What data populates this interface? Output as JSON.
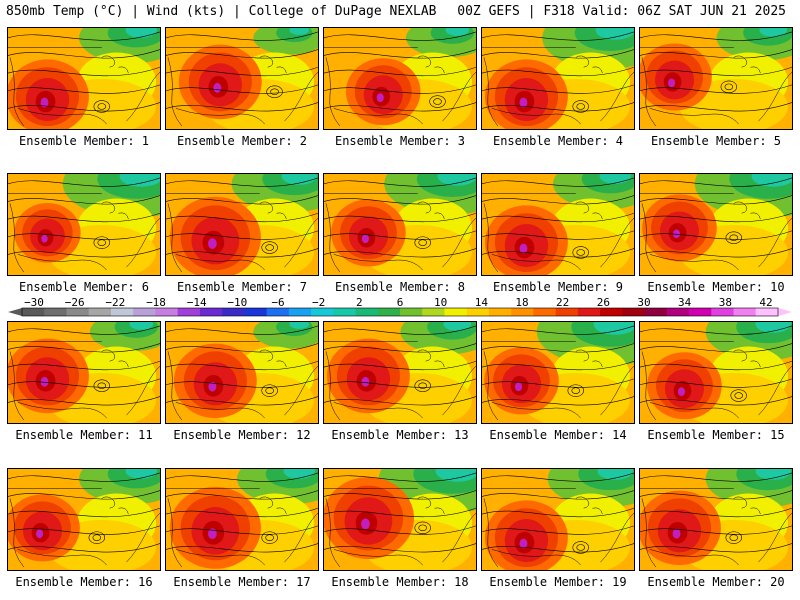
{
  "header": {
    "left_text": "850mb Temp (°C) | Wind (kts) | College of DuPage NEXLAB",
    "right_text": "00Z GEFS | F318 Valid: 06Z SAT JUN 21 2025"
  },
  "panel_label_prefix": "Ensemble Member:",
  "members": [
    {
      "label": "Ensemble Member: 1"
    },
    {
      "label": "Ensemble Member: 2"
    },
    {
      "label": "Ensemble Member: 3"
    },
    {
      "label": "Ensemble Member: 4"
    },
    {
      "label": "Ensemble Member: 5"
    },
    {
      "label": "Ensemble Member: 6"
    },
    {
      "label": "Ensemble Member: 7"
    },
    {
      "label": "Ensemble Member: 8"
    },
    {
      "label": "Ensemble Member: 9"
    },
    {
      "label": "Ensemble Member: 10"
    },
    {
      "label": "Ensemble Member: 11"
    },
    {
      "label": "Ensemble Member: 12"
    },
    {
      "label": "Ensemble Member: 13"
    },
    {
      "label": "Ensemble Member: 14"
    },
    {
      "label": "Ensemble Member: 15"
    },
    {
      "label": "Ensemble Member: 16"
    },
    {
      "label": "Ensemble Member: 17"
    },
    {
      "label": "Ensemble Member: 18"
    },
    {
      "label": "Ensemble Member: 19"
    },
    {
      "label": "Ensemble Member: 20"
    }
  ],
  "colorbar": {
    "tick_labels": [
      "−30",
      "−26",
      "−22",
      "−18",
      "−14",
      "−10",
      "−6",
      "−2",
      "2",
      "6",
      "10",
      "14",
      "18",
      "22",
      "26",
      "30",
      "34",
      "38",
      "42"
    ],
    "colors": [
      "#5a5a5a",
      "#6e6e6e",
      "#8a8a8a",
      "#a6a6a6",
      "#c0c8d8",
      "#b9a0d8",
      "#c77ee0",
      "#a040d8",
      "#6a2bd0",
      "#3a2bc8",
      "#1a35d8",
      "#1e6ef0",
      "#1aa0f0",
      "#19c8d8",
      "#19c8a8",
      "#1cb878",
      "#30b04a",
      "#70c030",
      "#b0d820",
      "#f0f000",
      "#ffd000",
      "#ffb000",
      "#ff9000",
      "#ff6a00",
      "#f04000",
      "#e01818",
      "#c00000",
      "#a00010",
      "#900040",
      "#b00080",
      "#d000b0",
      "#e040e0",
      "#f080f0",
      "#ffc0ff"
    ]
  },
  "map_styles": {
    "shared_palette": [
      "#1ec8a0",
      "#2ab04a",
      "#70c030",
      "#b8dc20",
      "#f0f000",
      "#ffd000",
      "#ffb000",
      "#ff9000",
      "#ff6a00",
      "#f04000",
      "#e01818",
      "#c00000",
      "#c020c0"
    ]
  }
}
